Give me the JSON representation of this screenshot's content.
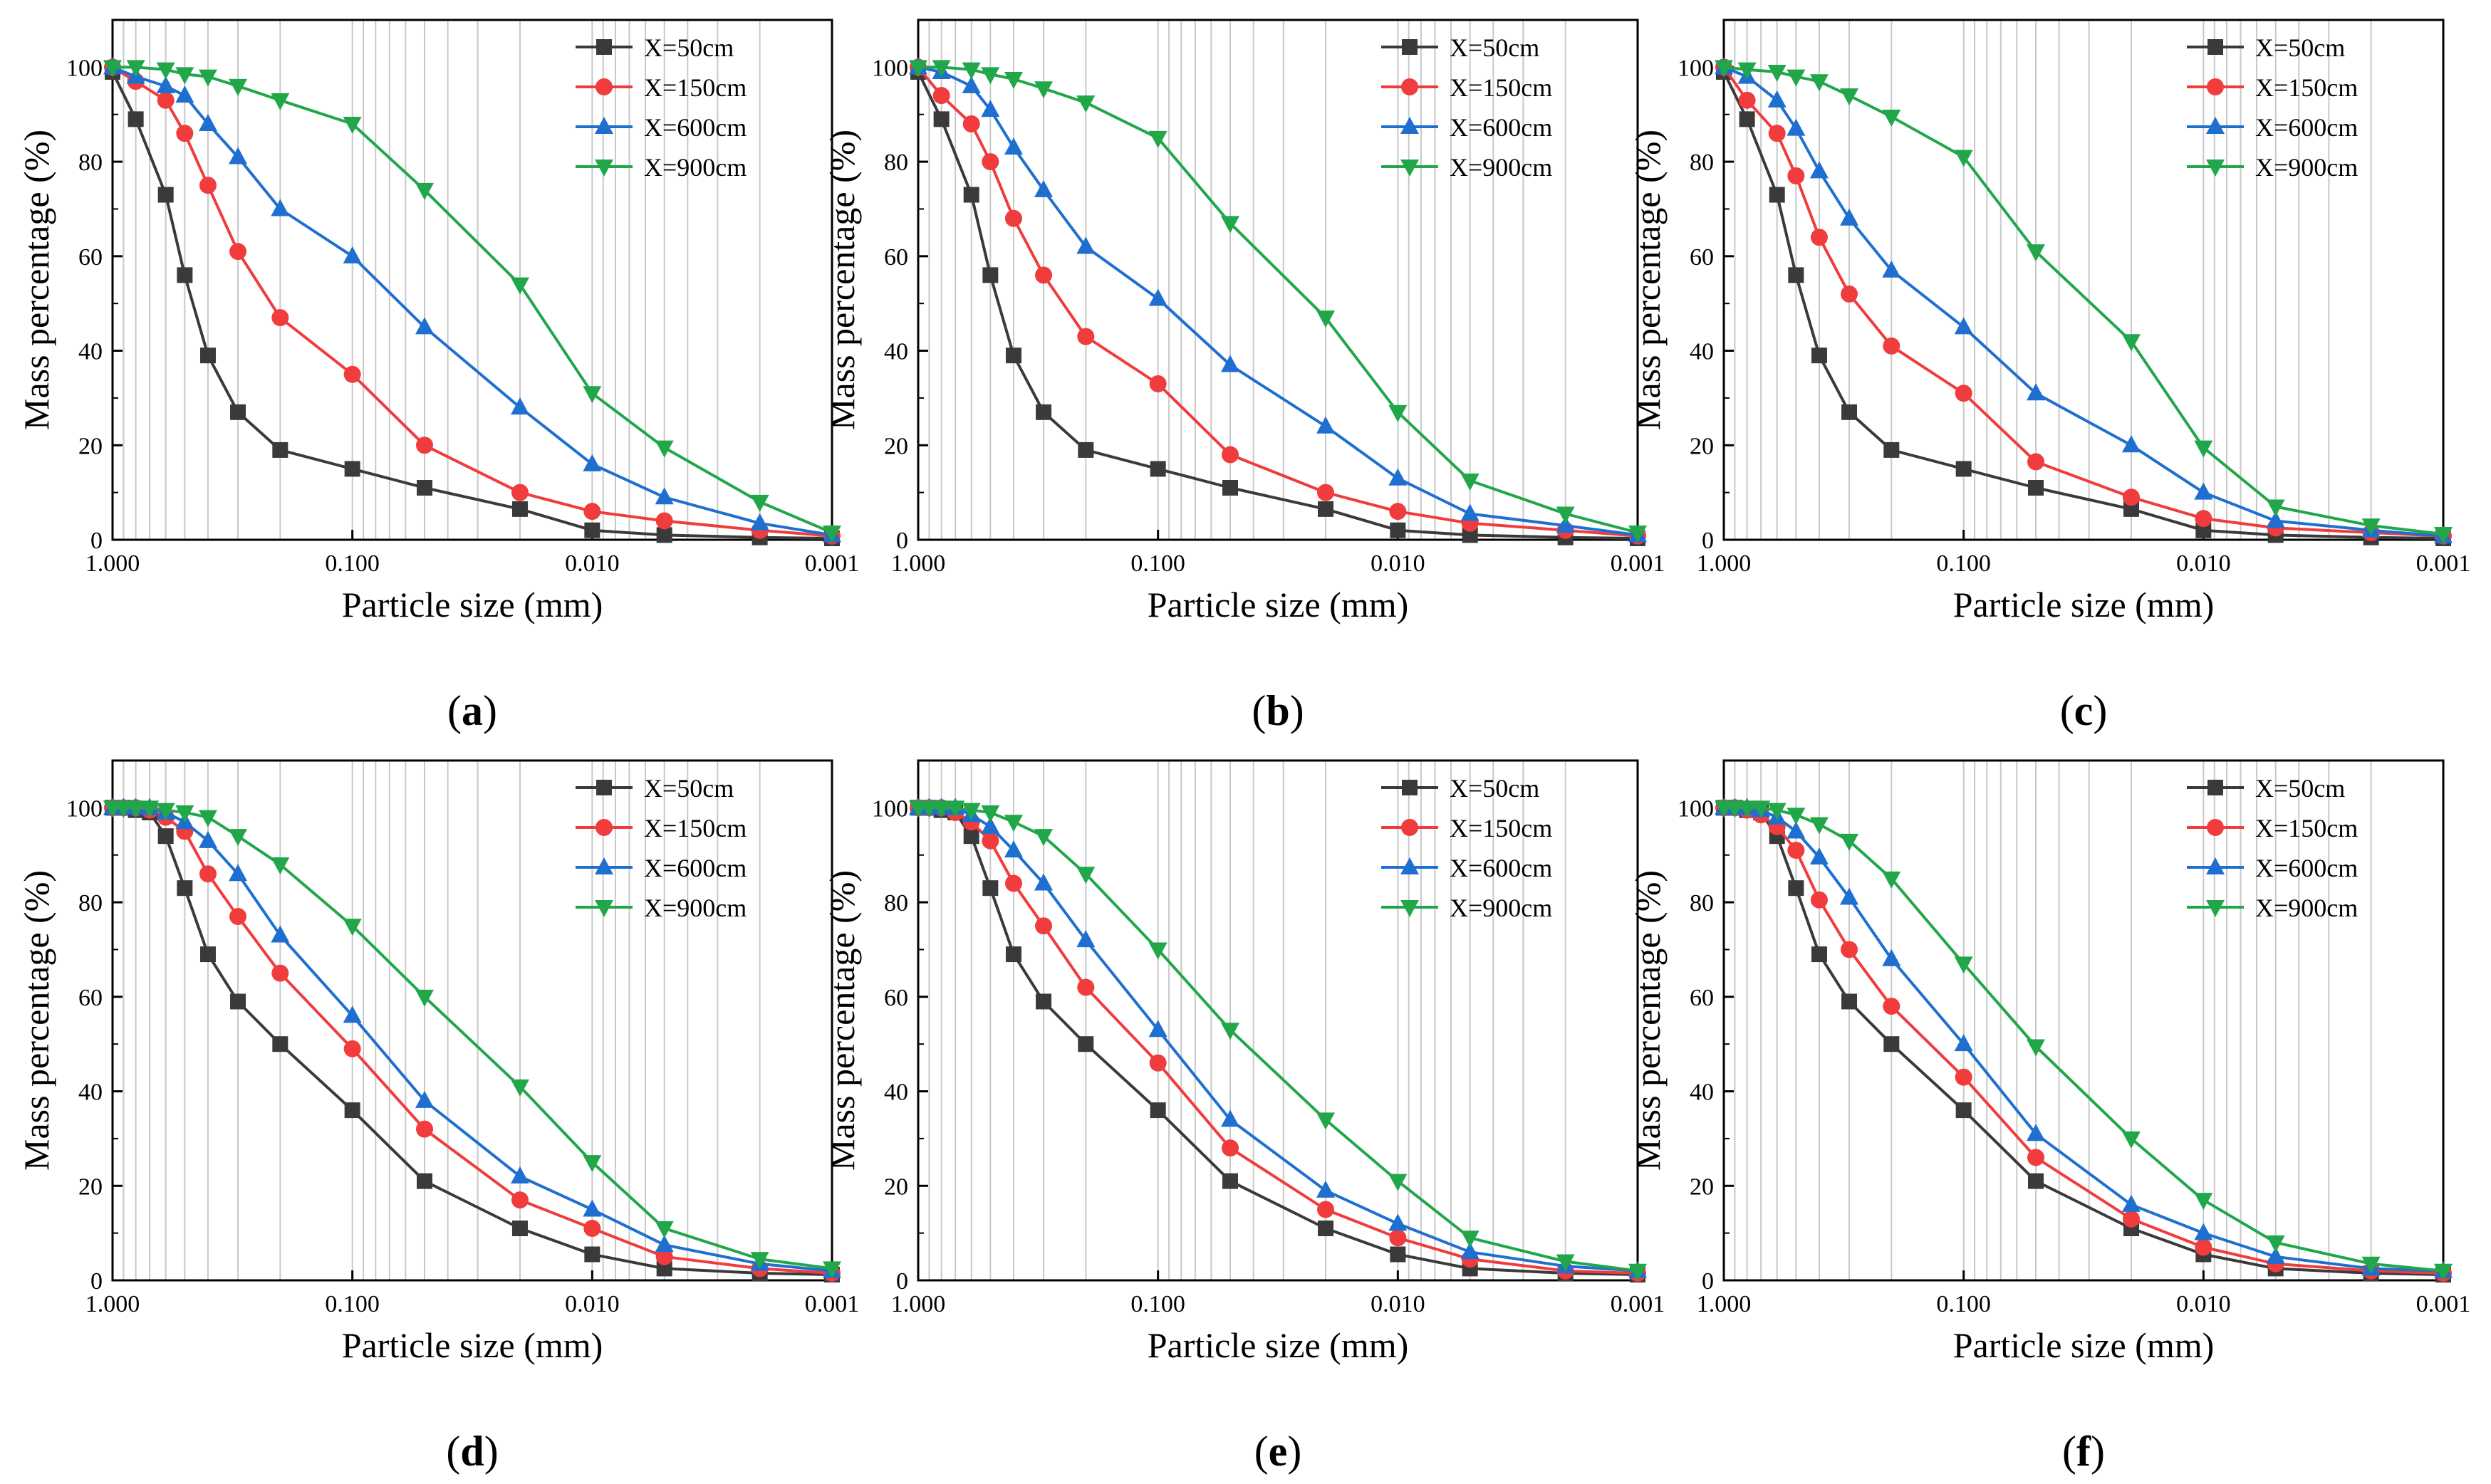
{
  "figure": {
    "series_colors": {
      "X=50cm": "#3a3a3a",
      "X=150cm": "#f03c3c",
      "X=600cm": "#1f6fd0",
      "X=900cm": "#21a74a"
    },
    "series_markers": {
      "X=50cm": "square",
      "X=150cm": "circle",
      "X=600cm": "triangle-up",
      "X=900cm": "triangle-down"
    }
  },
  "chart_data": [
    {
      "panel": "a",
      "type": "line",
      "xlabel": "Particle size (mm)",
      "ylabel": "Mass percentage (%)",
      "xscale": "log",
      "xlim": [
        1.0,
        0.001
      ],
      "ylim": [
        0,
        110
      ],
      "x_ticks": [
        "1.000",
        "0.100",
        "0.010",
        "0.001"
      ],
      "y_ticks": [
        "0",
        "20",
        "40",
        "60",
        "80",
        "100"
      ],
      "legend_position": "top-right",
      "grid": "vertical-log",
      "x": [
        1.0,
        0.8,
        0.6,
        0.5,
        0.4,
        0.3,
        0.2,
        0.1,
        0.05,
        0.02,
        0.01,
        0.005,
        0.002,
        0.001
      ],
      "series": [
        {
          "name": "X=50cm",
          "values": [
            99,
            89,
            73,
            56,
            39,
            27,
            19,
            15,
            11,
            6.5,
            2,
            1,
            0.5,
            0.3
          ]
        },
        {
          "name": "X=150cm",
          "values": [
            100,
            97,
            93,
            86,
            75,
            61,
            47,
            35,
            20,
            10,
            6,
            4,
            2,
            0.8
          ]
        },
        {
          "name": "X=600cm",
          "values": [
            100,
            98,
            96,
            94,
            88,
            81,
            70,
            60,
            45,
            28,
            16,
            9,
            3.5,
            1
          ]
        },
        {
          "name": "X=900cm",
          "values": [
            100,
            100,
            99.5,
            98.5,
            98,
            96,
            93,
            88,
            74,
            54,
            31,
            19.5,
            8,
            1.5
          ]
        }
      ]
    },
    {
      "panel": "b",
      "type": "line",
      "xlabel": "Particle size (mm)",
      "ylabel": "Mass percentage (%)",
      "xscale": "log",
      "xlim": [
        1.0,
        0.001
      ],
      "ylim": [
        0,
        110
      ],
      "x_ticks": [
        "1.000",
        "0.100",
        "0.010",
        "0.001"
      ],
      "y_ticks": [
        "0",
        "20",
        "40",
        "60",
        "80",
        "100"
      ],
      "legend_position": "top-right",
      "grid": "vertical-log",
      "x": [
        1.0,
        0.8,
        0.6,
        0.5,
        0.4,
        0.3,
        0.2,
        0.1,
        0.05,
        0.02,
        0.01,
        0.005,
        0.002,
        0.001
      ],
      "series": [
        {
          "name": "X=50cm",
          "values": [
            99,
            89,
            73,
            56,
            39,
            27,
            19,
            15,
            11,
            6.5,
            2,
            1,
            0.5,
            0.3
          ]
        },
        {
          "name": "X=150cm",
          "values": [
            100,
            94,
            88,
            80,
            68,
            56,
            43,
            33,
            18,
            10,
            6,
            3.5,
            2,
            0.8
          ]
        },
        {
          "name": "X=600cm",
          "values": [
            100,
            99,
            96,
            91,
            83,
            74,
            62,
            51,
            37,
            24,
            13,
            5.5,
            3,
            1
          ]
        },
        {
          "name": "X=900cm",
          "values": [
            100,
            100,
            99.5,
            98.5,
            97.5,
            95.5,
            92.5,
            85,
            67,
            47,
            27,
            12.5,
            5.5,
            1.5
          ]
        }
      ]
    },
    {
      "panel": "c",
      "type": "line",
      "xlabel": "Particle size (mm)",
      "ylabel": "Mass percentage (%)",
      "xscale": "log",
      "xlim": [
        1.0,
        0.001
      ],
      "ylim": [
        0,
        110
      ],
      "x_ticks": [
        "1.000",
        "0.100",
        "0.010",
        "0.001"
      ],
      "y_ticks": [
        "0",
        "20",
        "40",
        "60",
        "80",
        "100"
      ],
      "legend_position": "top-right",
      "grid": "vertical-log",
      "x": [
        1.0,
        0.8,
        0.6,
        0.5,
        0.4,
        0.3,
        0.2,
        0.1,
        0.05,
        0.02,
        0.01,
        0.005,
        0.002,
        0.001
      ],
      "series": [
        {
          "name": "X=50cm",
          "values": [
            99,
            89,
            73,
            56,
            39,
            27,
            19,
            15,
            11,
            6.5,
            2,
            1,
            0.5,
            0.3
          ]
        },
        {
          "name": "X=150cm",
          "values": [
            100,
            93,
            86,
            77,
            64,
            52,
            41,
            31,
            16.5,
            9,
            4.5,
            2.5,
            1.5,
            0.8
          ]
        },
        {
          "name": "X=600cm",
          "values": [
            100,
            98,
            93,
            87,
            78,
            68,
            57,
            45,
            31,
            20,
            10,
            4,
            2,
            0.8
          ]
        },
        {
          "name": "X=900cm",
          "values": [
            100,
            99.5,
            99,
            98,
            97,
            94,
            89.5,
            81,
            61,
            42,
            19.5,
            7,
            3,
            1.2
          ]
        }
      ]
    },
    {
      "panel": "d",
      "type": "line",
      "xlabel": "Particle size (mm)",
      "ylabel": "Mass percentage (%)",
      "xscale": "log",
      "xlim": [
        1.0,
        0.001
      ],
      "ylim": [
        0,
        110
      ],
      "x_ticks": [
        "1.000",
        "0.100",
        "0.010",
        "0.001"
      ],
      "y_ticks": [
        "0",
        "20",
        "40",
        "60",
        "80",
        "100"
      ],
      "legend_position": "top-right",
      "grid": "vertical-log",
      "x": [
        1.0,
        0.9,
        0.8,
        0.7,
        0.6,
        0.5,
        0.4,
        0.3,
        0.2,
        0.1,
        0.05,
        0.02,
        0.01,
        0.005,
        0.002,
        0.001
      ],
      "series": [
        {
          "name": "X=50cm",
          "values": [
            100,
            100,
            99.5,
            99,
            94,
            83,
            69,
            59,
            50,
            36,
            21,
            11,
            5.5,
            2.5,
            1.5,
            1.2
          ]
        },
        {
          "name": "X=150cm",
          "values": [
            100,
            100,
            100,
            99.5,
            98,
            95,
            86,
            77,
            65,
            49,
            32,
            17,
            11,
            5,
            2.5,
            1.5
          ]
        },
        {
          "name": "X=600cm",
          "values": [
            100,
            100,
            100,
            100,
            99,
            97,
            93,
            86,
            73,
            56,
            38,
            22,
            15,
            7.5,
            3.5,
            2
          ]
        },
        {
          "name": "X=900cm",
          "values": [
            100,
            100,
            100,
            100,
            99.5,
            99,
            98,
            94,
            88,
            75,
            60,
            41,
            25,
            11,
            4.5,
            2.5
          ]
        }
      ]
    },
    {
      "panel": "e",
      "type": "line",
      "xlabel": "Particle size (mm)",
      "ylabel": "Mass percentage (%)",
      "xscale": "log",
      "xlim": [
        1.0,
        0.001
      ],
      "ylim": [
        0,
        110
      ],
      "x_ticks": [
        "1.000",
        "0.100",
        "0.010",
        "0.001"
      ],
      "y_ticks": [
        "0",
        "20",
        "40",
        "60",
        "80",
        "100"
      ],
      "legend_position": "top-right",
      "grid": "vertical-log",
      "x": [
        1.0,
        0.9,
        0.8,
        0.7,
        0.6,
        0.5,
        0.4,
        0.3,
        0.2,
        0.1,
        0.05,
        0.02,
        0.01,
        0.005,
        0.002,
        0.001
      ],
      "series": [
        {
          "name": "X=50cm",
          "values": [
            100,
            100,
            99.5,
            99,
            94,
            83,
            69,
            59,
            50,
            36,
            21,
            11,
            5.5,
            2.5,
            1.5,
            1.2
          ]
        },
        {
          "name": "X=150cm",
          "values": [
            100,
            100,
            100,
            99,
            97,
            93,
            84,
            75,
            62,
            46,
            28,
            15,
            9,
            4.5,
            2,
            1.5
          ]
        },
        {
          "name": "X=600cm",
          "values": [
            100,
            100,
            100,
            100,
            98.5,
            96,
            91,
            84,
            72,
            53,
            34,
            19,
            12,
            6,
            3,
            2
          ]
        },
        {
          "name": "X=900cm",
          "values": [
            100,
            100,
            100,
            100,
            99.5,
            99,
            97,
            94,
            86,
            70,
            53,
            34,
            21,
            9,
            4,
            2
          ]
        }
      ]
    },
    {
      "panel": "f",
      "type": "line",
      "xlabel": "Particle size (mm)",
      "ylabel": "Mass percentage (%)",
      "xscale": "log",
      "xlim": [
        1.0,
        0.001
      ],
      "ylim": [
        0,
        110
      ],
      "x_ticks": [
        "1.000",
        "0.100",
        "0.010",
        "0.001"
      ],
      "y_ticks": [
        "0",
        "20",
        "40",
        "60",
        "80",
        "100"
      ],
      "legend_position": "top-right",
      "grid": "vertical-log",
      "x": [
        1.0,
        0.9,
        0.8,
        0.7,
        0.6,
        0.5,
        0.4,
        0.3,
        0.2,
        0.1,
        0.05,
        0.02,
        0.01,
        0.005,
        0.002,
        0.001
      ],
      "series": [
        {
          "name": "X=50cm",
          "values": [
            100,
            100,
            99.5,
            99,
            94,
            83,
            69,
            59,
            50,
            36,
            21,
            11,
            5.5,
            2.5,
            1.5,
            1.2
          ]
        },
        {
          "name": "X=150cm",
          "values": [
            100,
            100,
            99.5,
            98.5,
            96,
            91,
            80.5,
            70,
            58,
            43,
            26,
            13,
            7,
            3.5,
            2,
            1.5
          ]
        },
        {
          "name": "X=600cm",
          "values": [
            100,
            100,
            100,
            99.5,
            98,
            95,
            89.5,
            81,
            68,
            50,
            31,
            16,
            10,
            5,
            2.5,
            2
          ]
        },
        {
          "name": "X=900cm",
          "values": [
            100,
            100,
            100,
            100,
            99.5,
            98.5,
            96.5,
            93,
            85,
            67,
            49.5,
            30,
            17,
            8,
            3.5,
            2
          ]
        }
      ]
    }
  ]
}
